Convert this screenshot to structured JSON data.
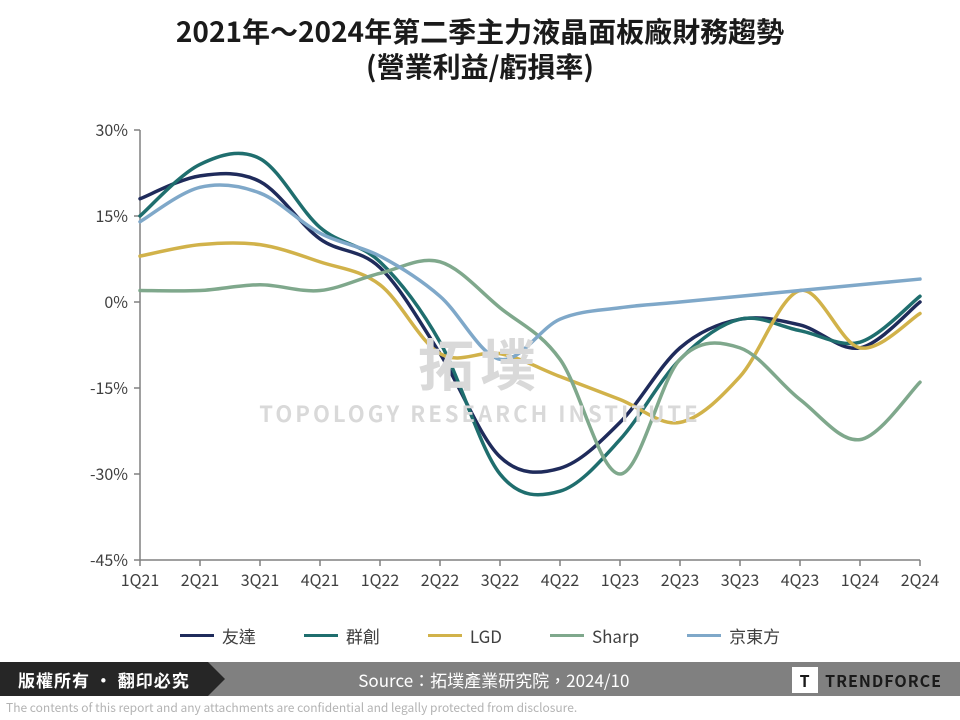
{
  "title_line1": "2021年～2024年第二季主力液晶面板廠財務趨勢",
  "title_line2": "(營業利益/虧損率)",
  "title_fontsize": 28,
  "watermark": {
    "cn": "拓墣",
    "en": "TOPOLOGY RESEARCH INSTITUTE"
  },
  "footer": {
    "copyright": "版權所有 · 翻印必究",
    "source": "Source：拓墣產業研究院，2024/10"
  },
  "logo_text": "TRENDFORCE",
  "logo_mark": "T",
  "disclaimer": "The contents of this report and any attachments are confidential and legally protected from disclosure.",
  "chart": {
    "type": "line",
    "background_color": "#ffffff",
    "axis_color": "#808080",
    "tick_font_size": 16,
    "tick_color": "#404040",
    "line_width": 3.5,
    "ylim": [
      -45,
      30
    ],
    "ytick_step": 15,
    "ytick_suffix": "%",
    "x_categories": [
      "1Q21",
      "2Q21",
      "3Q21",
      "4Q21",
      "1Q22",
      "2Q22",
      "3Q22",
      "4Q22",
      "1Q23",
      "2Q23",
      "3Q23",
      "4Q23",
      "1Q24",
      "2Q24"
    ],
    "series": [
      {
        "name": "友達",
        "color": "#1f2b5b",
        "values": [
          18,
          22,
          21,
          11,
          6,
          -9,
          -27,
          -29,
          -21,
          -8,
          -3,
          -4,
          -8,
          0
        ]
      },
      {
        "name": "群創",
        "color": "#1f6e6e",
        "values": [
          15,
          24,
          25,
          13,
          7,
          -7,
          -30,
          -33,
          -24,
          -10,
          -3,
          -5,
          -7,
          1
        ]
      },
      {
        "name": "LGD",
        "color": "#d1b24a",
        "values": [
          8,
          10,
          10,
          7,
          3,
          -9,
          -9,
          -13,
          -17,
          -21,
          -13,
          2,
          -8,
          -2
        ]
      },
      {
        "name": "Sharp",
        "color": "#7fa88c",
        "values": [
          2,
          2,
          3,
          2,
          5,
          7,
          -1,
          -10,
          -30,
          -10,
          -8,
          -17,
          -24,
          -14
        ]
      },
      {
        "name": "京東方",
        "color": "#7fa8c9",
        "values": [
          14,
          20,
          19,
          12,
          8,
          1,
          -10,
          -3,
          -1,
          0,
          1,
          2,
          3,
          4
        ]
      }
    ]
  }
}
